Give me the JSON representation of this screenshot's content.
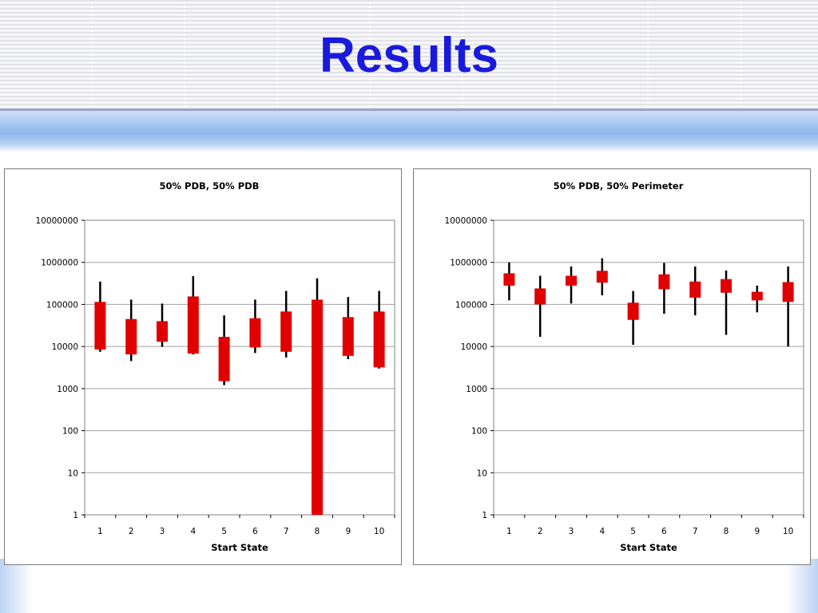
{
  "slide": {
    "title": "Results",
    "colors": {
      "title": "#1a1adc",
      "band": "#8fb6eb",
      "box_fill": "#e00000",
      "whisker": "#000000",
      "gridline": "#a0a0a0"
    }
  },
  "chart_data": [
    {
      "type": "box",
      "title": "50% PDB, 50% PDB",
      "xlabel": "Start State",
      "ylabel": "",
      "y_scale": "log",
      "ylim": [
        1,
        10000000
      ],
      "y_ticks": [
        "1",
        "10",
        "100",
        "1000",
        "10000",
        "100000",
        "1000000",
        "10000000"
      ],
      "categories": [
        "1",
        "2",
        "3",
        "4",
        "5",
        "6",
        "7",
        "8",
        "9",
        "10"
      ],
      "grid": true,
      "boxes": [
        {
          "x": "1",
          "whisker_low": 7500,
          "box_low": 8500,
          "box_high": 115000,
          "whisker_high": 350000
        },
        {
          "x": "2",
          "whisker_low": 4500,
          "box_low": 6500,
          "box_high": 45000,
          "whisker_high": 130000
        },
        {
          "x": "3",
          "whisker_low": 9800,
          "box_low": 13000,
          "box_high": 40000,
          "whisker_high": 105000
        },
        {
          "x": "4",
          "whisker_low": 6500,
          "box_low": 6800,
          "box_high": 155000,
          "whisker_high": 470000
        },
        {
          "x": "5",
          "whisker_low": 1200,
          "box_low": 1500,
          "box_high": 17000,
          "whisker_high": 55000
        },
        {
          "x": "6",
          "whisker_low": 7000,
          "box_low": 9500,
          "box_high": 47000,
          "whisker_high": 130000
        },
        {
          "x": "7",
          "whisker_low": 5500,
          "box_low": 7500,
          "box_high": 68000,
          "whisker_high": 210000
        },
        {
          "x": "8",
          "whisker_low": 1,
          "box_low": 1,
          "box_high": 130000,
          "whisker_high": 420000
        },
        {
          "x": "9",
          "whisker_low": 5000,
          "box_low": 6000,
          "box_high": 50000,
          "whisker_high": 150000
        },
        {
          "x": "10",
          "whisker_low": 3000,
          "box_low": 3200,
          "box_high": 68000,
          "whisker_high": 210000
        }
      ]
    },
    {
      "type": "box",
      "title": "50% PDB, 50% Perimeter",
      "xlabel": "Start State",
      "ylabel": "",
      "y_scale": "log",
      "ylim": [
        1,
        10000000
      ],
      "y_ticks": [
        "1",
        "10",
        "100",
        "1000",
        "10000",
        "100000",
        "1000000",
        "10000000"
      ],
      "categories": [
        "1",
        "2",
        "3",
        "4",
        "5",
        "6",
        "7",
        "8",
        "9",
        "10"
      ],
      "grid": true,
      "boxes": [
        {
          "x": "1",
          "whisker_low": 125000,
          "box_low": 280000,
          "box_high": 550000,
          "whisker_high": 1000000
        },
        {
          "x": "2",
          "whisker_low": 17000,
          "box_low": 100000,
          "box_high": 240000,
          "whisker_high": 480000
        },
        {
          "x": "3",
          "whisker_low": 105000,
          "box_low": 280000,
          "box_high": 480000,
          "whisker_high": 800000
        },
        {
          "x": "4",
          "whisker_low": 165000,
          "box_low": 330000,
          "box_high": 630000,
          "whisker_high": 1250000
        },
        {
          "x": "5",
          "whisker_low": 11000,
          "box_low": 43000,
          "box_high": 110000,
          "whisker_high": 210000
        },
        {
          "x": "6",
          "whisker_low": 60000,
          "box_low": 230000,
          "box_high": 520000,
          "whisker_high": 970000
        },
        {
          "x": "7",
          "whisker_low": 55000,
          "box_low": 145000,
          "box_high": 350000,
          "whisker_high": 800000
        },
        {
          "x": "8",
          "whisker_low": 19000,
          "box_low": 190000,
          "box_high": 400000,
          "whisker_high": 640000
        },
        {
          "x": "9",
          "whisker_low": 65000,
          "box_low": 125000,
          "box_high": 200000,
          "whisker_high": 280000
        },
        {
          "x": "10",
          "whisker_low": 10000,
          "box_low": 115000,
          "box_high": 340000,
          "whisker_high": 800000
        }
      ]
    }
  ]
}
